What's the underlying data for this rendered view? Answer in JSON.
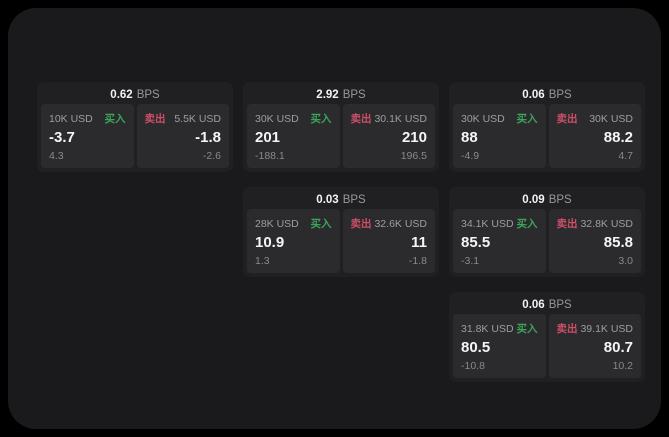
{
  "theme": {
    "page_bg": "#000000",
    "container_bg": "#1a1a1c",
    "card_bg": "#202022",
    "panel_bg": "#2b2b2d",
    "text_primary": "#f4f5f6",
    "text_secondary": "#9b9ea1",
    "buy_color": "#3ca45a",
    "sell_color": "#cc4f66"
  },
  "labels": {
    "bps_suffix": "BPS",
    "buy": "买入",
    "sell": "卖出"
  },
  "cards": [
    {
      "bps": "0.62",
      "buy": {
        "size": "10K USD",
        "price": "-3.7",
        "delta": "4.3"
      },
      "sell": {
        "size": "5.5K USD",
        "price": "-1.8",
        "delta": "-2.6"
      }
    },
    {
      "bps": "2.92",
      "buy": {
        "size": "30K USD",
        "price": "201",
        "delta": "-188.1"
      },
      "sell": {
        "size": "30.1K USD",
        "price": "210",
        "delta": "196.5"
      }
    },
    {
      "bps": "0.06",
      "buy": {
        "size": "30K USD",
        "price": "88",
        "delta": "-4.9"
      },
      "sell": {
        "size": "30K USD",
        "price": "88.2",
        "delta": "4.7"
      }
    },
    {
      "bps": "0.03",
      "buy": {
        "size": "28K USD",
        "price": "10.9",
        "delta": "1.3"
      },
      "sell": {
        "size": "32.6K USD",
        "price": "11",
        "delta": "-1.8"
      }
    },
    {
      "bps": "0.09",
      "buy": {
        "size": "34.1K USD",
        "price": "85.5",
        "delta": "-3.1"
      },
      "sell": {
        "size": "32.8K USD",
        "price": "85.8",
        "delta": "3.0"
      }
    },
    {
      "bps": "0.06",
      "buy": {
        "size": "31.8K USD",
        "price": "80.5",
        "delta": "-10.8"
      },
      "sell": {
        "size": "39.1K USD",
        "price": "80.7",
        "delta": "10.2"
      }
    }
  ]
}
